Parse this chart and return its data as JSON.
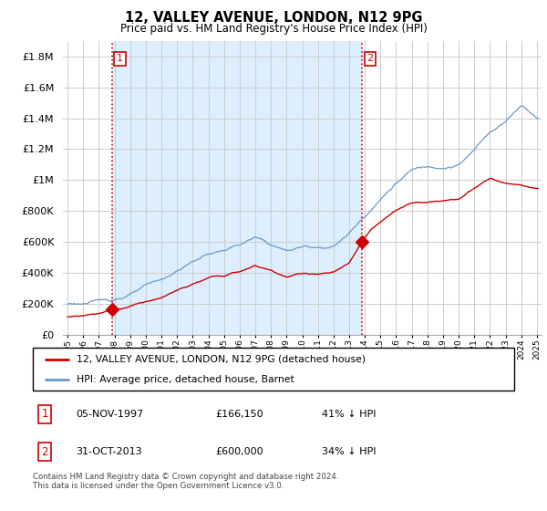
{
  "title": "12, VALLEY AVENUE, LONDON, N12 9PG",
  "subtitle": "Price paid vs. HM Land Registry's House Price Index (HPI)",
  "ytick_values": [
    0,
    200000,
    400000,
    600000,
    800000,
    1000000,
    1200000,
    1400000,
    1600000,
    1800000
  ],
  "ylim": [
    0,
    1900000
  ],
  "xlim_start": 1994.7,
  "xlim_end": 2025.3,
  "sale1_x": 1997.84,
  "sale1_y": 166150,
  "sale1_label": "1",
  "sale2_x": 2013.83,
  "sale2_y": 600000,
  "sale2_label": "2",
  "legend_line1": "12, VALLEY AVENUE, LONDON, N12 9PG (detached house)",
  "legend_line2": "HPI: Average price, detached house, Barnet",
  "table_row1_num": "1",
  "table_row1_date": "05-NOV-1997",
  "table_row1_price": "£166,150",
  "table_row1_hpi": "41% ↓ HPI",
  "table_row2_num": "2",
  "table_row2_date": "31-OCT-2013",
  "table_row2_price": "£600,000",
  "table_row2_hpi": "34% ↓ HPI",
  "footer": "Contains HM Land Registry data © Crown copyright and database right 2024.\nThis data is licensed under the Open Government Licence v3.0.",
  "price_line_color": "#cc0000",
  "hpi_line_color": "#6699cc",
  "hpi_fill_color": "#ddeeff",
  "sale_marker_color": "#cc0000",
  "dashed_line_color": "#cc0000",
  "background_color": "#ffffff",
  "grid_color": "#cccccc",
  "label_box_color": "#cc0000",
  "shade_color": "#ddeeff"
}
